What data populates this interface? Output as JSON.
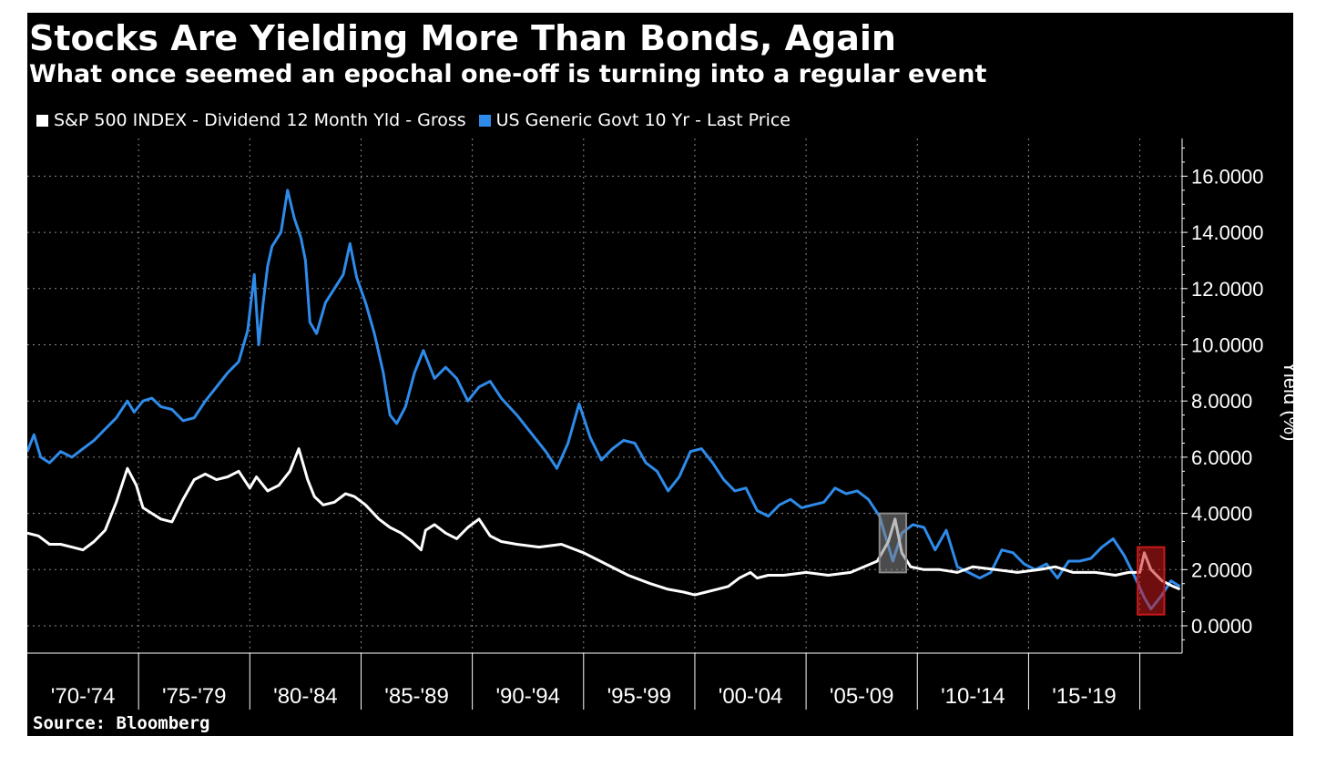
{
  "chart_data": {
    "type": "line",
    "title": "Stocks Are Yielding More Than Bonds, Again",
    "subtitle": "What once seemed an epochal one-off is turning into a regular event",
    "ylabel": "Yield (%)",
    "ylim": [
      -1,
      17
    ],
    "yticks": [
      "0.0000",
      "2.0000",
      "4.0000",
      "6.0000",
      "8.0000",
      "10.0000",
      "12.0000",
      "14.0000",
      "16.0000"
    ],
    "ytick_values": [
      0,
      2,
      4,
      6,
      8,
      10,
      12,
      14,
      16
    ],
    "xlim": [
      1970.0,
      2021.9
    ],
    "x_boundaries": [
      1975,
      1980,
      1985,
      1990,
      1995,
      2000,
      2005,
      2010,
      2015,
      2020
    ],
    "x_groups": [
      {
        "label": "'70-'74",
        "x": 1972.5
      },
      {
        "label": "'75-'79",
        "x": 1977.5
      },
      {
        "label": "'80-'84",
        "x": 1982.5
      },
      {
        "label": "'85-'89",
        "x": 1987.5
      },
      {
        "label": "'90-'94",
        "x": 1992.5
      },
      {
        "label": "'95-'99",
        "x": 1997.5
      },
      {
        "label": "'00-'04",
        "x": 2002.5
      },
      {
        "label": "'05-'09",
        "x": 2007.5
      },
      {
        "label": "'10-'14",
        "x": 2012.5
      },
      {
        "label": "'15-'19",
        "x": 2017.5
      }
    ],
    "grid": true,
    "legend": "top-left",
    "series": [
      {
        "name": "S&P 500 INDEX - Dividend 12 Month Yld - Gross",
        "color": "#ffffff",
        "x": [
          1970.0,
          1970.5,
          1971.0,
          1971.5,
          1972.0,
          1972.5,
          1973.0,
          1973.5,
          1974.0,
          1974.5,
          1974.9,
          1975.2,
          1975.6,
          1976.0,
          1976.5,
          1977.0,
          1977.5,
          1978.0,
          1978.5,
          1979.0,
          1979.5,
          1980.0,
          1980.3,
          1980.8,
          1981.3,
          1981.8,
          1982.2,
          1982.6,
          1982.9,
          1983.3,
          1983.8,
          1984.3,
          1984.7,
          1985.2,
          1985.8,
          1986.3,
          1986.8,
          1987.3,
          1987.7,
          1987.9,
          1988.3,
          1988.8,
          1989.3,
          1989.8,
          1990.3,
          1990.8,
          1991.3,
          1992.0,
          1993.0,
          1994.0,
          1995.0,
          1996.0,
          1997.0,
          1998.0,
          1998.8,
          1999.5,
          2000.0,
          2000.5,
          2001.0,
          2001.5,
          2002.0,
          2002.5,
          2002.8,
          2003.3,
          2004.0,
          2005.0,
          2006.0,
          2007.0,
          2007.6,
          2008.2,
          2008.7,
          2009.0,
          2009.3,
          2009.7,
          2010.3,
          2011.0,
          2011.8,
          2012.5,
          2013.5,
          2014.5,
          2015.5,
          2016.2,
          2017.0,
          2018.0,
          2018.9,
          2019.5,
          2020.0,
          2020.2,
          2020.5,
          2021.0,
          2021.5,
          2021.8
        ],
        "y": [
          3.3,
          3.2,
          2.9,
          2.9,
          2.8,
          2.7,
          3.0,
          3.4,
          4.4,
          5.6,
          5.0,
          4.2,
          4.0,
          3.8,
          3.7,
          4.5,
          5.2,
          5.4,
          5.2,
          5.3,
          5.5,
          4.9,
          5.3,
          4.8,
          5.0,
          5.5,
          6.3,
          5.2,
          4.6,
          4.3,
          4.4,
          4.7,
          4.6,
          4.3,
          3.8,
          3.5,
          3.3,
          3.0,
          2.7,
          3.4,
          3.6,
          3.3,
          3.1,
          3.5,
          3.8,
          3.2,
          3.0,
          2.9,
          2.8,
          2.9,
          2.6,
          2.2,
          1.8,
          1.5,
          1.3,
          1.2,
          1.1,
          1.2,
          1.3,
          1.4,
          1.7,
          1.9,
          1.7,
          1.8,
          1.8,
          1.9,
          1.8,
          1.9,
          2.1,
          2.3,
          3.0,
          3.8,
          2.6,
          2.1,
          2.0,
          2.0,
          1.9,
          2.1,
          2.0,
          1.9,
          2.0,
          2.1,
          1.9,
          1.9,
          1.8,
          1.9,
          1.9,
          2.6,
          2.0,
          1.6,
          1.4,
          1.3
        ]
      },
      {
        "name": "US Generic Govt 10 Yr - Last Price",
        "color": "#2f8bea",
        "x": [
          1970.0,
          1970.3,
          1970.6,
          1971.0,
          1971.5,
          1972.0,
          1972.5,
          1973.0,
          1973.5,
          1974.0,
          1974.5,
          1974.8,
          1975.2,
          1975.6,
          1976.0,
          1976.5,
          1977.0,
          1977.5,
          1978.0,
          1978.5,
          1979.0,
          1979.5,
          1979.9,
          1980.2,
          1980.4,
          1980.6,
          1980.8,
          1981.0,
          1981.4,
          1981.7,
          1982.0,
          1982.3,
          1982.5,
          1982.7,
          1983.0,
          1983.4,
          1983.8,
          1984.2,
          1984.5,
          1984.8,
          1985.2,
          1985.6,
          1986.0,
          1986.3,
          1986.6,
          1987.0,
          1987.4,
          1987.8,
          1988.3,
          1988.8,
          1989.3,
          1989.8,
          1990.3,
          1990.8,
          1991.3,
          1992.0,
          1992.7,
          1993.3,
          1993.8,
          1994.3,
          1994.8,
          1995.3,
          1995.8,
          1996.3,
          1996.8,
          1997.3,
          1997.8,
          1998.3,
          1998.8,
          1999.3,
          1999.8,
          2000.3,
          2000.8,
          2001.3,
          2001.8,
          2002.3,
          2002.8,
          2003.3,
          2003.8,
          2004.3,
          2004.8,
          2005.3,
          2005.8,
          2006.3,
          2006.8,
          2007.3,
          2007.8,
          2008.3,
          2008.9,
          2009.3,
          2009.8,
          2010.3,
          2010.8,
          2011.3,
          2011.8,
          2012.3,
          2012.8,
          2013.3,
          2013.8,
          2014.3,
          2014.8,
          2015.3,
          2015.8,
          2016.3,
          2016.8,
          2017.3,
          2017.8,
          2018.3,
          2018.8,
          2019.3,
          2019.8,
          2020.2,
          2020.5,
          2021.0,
          2021.4,
          2021.8
        ],
        "y": [
          6.2,
          6.8,
          6.0,
          5.8,
          6.2,
          6.0,
          6.3,
          6.6,
          7.0,
          7.4,
          8.0,
          7.6,
          8.0,
          8.1,
          7.8,
          7.7,
          7.3,
          7.4,
          8.0,
          8.5,
          9.0,
          9.4,
          10.5,
          12.5,
          10.0,
          11.5,
          12.8,
          13.5,
          14.0,
          15.5,
          14.5,
          13.8,
          13.0,
          10.8,
          10.4,
          11.5,
          12.0,
          12.5,
          13.6,
          12.4,
          11.5,
          10.4,
          9.0,
          7.5,
          7.2,
          7.8,
          9.0,
          9.8,
          8.8,
          9.2,
          8.8,
          8.0,
          8.5,
          8.7,
          8.1,
          7.5,
          6.8,
          6.2,
          5.6,
          6.5,
          7.9,
          6.7,
          5.9,
          6.3,
          6.6,
          6.5,
          5.8,
          5.5,
          4.8,
          5.3,
          6.2,
          6.3,
          5.8,
          5.2,
          4.8,
          4.9,
          4.1,
          3.9,
          4.3,
          4.5,
          4.2,
          4.3,
          4.4,
          4.9,
          4.7,
          4.8,
          4.5,
          3.9,
          2.3,
          3.3,
          3.6,
          3.5,
          2.7,
          3.4,
          2.1,
          1.9,
          1.7,
          1.9,
          2.7,
          2.6,
          2.2,
          2.0,
          2.2,
          1.7,
          2.3,
          2.3,
          2.4,
          2.8,
          3.1,
          2.5,
          1.7,
          1.0,
          0.6,
          1.1,
          1.6,
          1.4
        ]
      }
    ],
    "highlights": [
      {
        "x0": 2008.3,
        "x1": 2009.5,
        "y0": 1.9,
        "y1": 4.0,
        "color": "#888888"
      },
      {
        "x0": 2019.9,
        "x1": 2021.1,
        "y0": 0.4,
        "y1": 2.8,
        "color": "#c8191b"
      }
    ]
  },
  "source": "Source: Bloomberg"
}
